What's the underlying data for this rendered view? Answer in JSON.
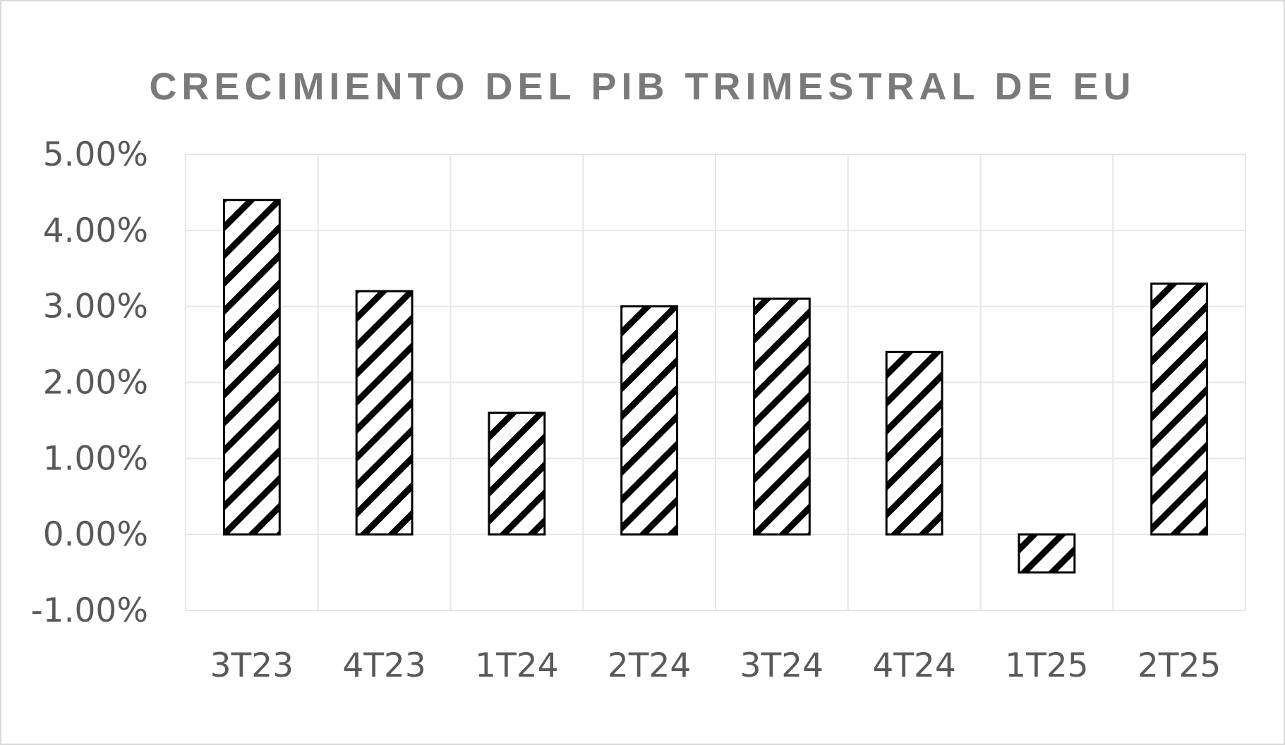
{
  "chart_data": {
    "type": "bar",
    "title": "CRECIMIENTO DEL PIB TRIMESTRAL DE EU",
    "xlabel": "",
    "ylabel": "",
    "categories": [
      "3T23",
      "4T23",
      "1T24",
      "2T24",
      "3T24",
      "4T24",
      "1T25",
      "2T25"
    ],
    "values": [
      4.4,
      3.2,
      1.6,
      3.0,
      3.1,
      2.4,
      -0.5,
      3.3
    ],
    "ylim": [
      -1,
      5
    ],
    "yticks": [
      5,
      4,
      3,
      2,
      1,
      0,
      -1
    ],
    "ytick_labels": [
      "5.00%",
      "4.00%",
      "3.00%",
      "2.00%",
      "1.00%",
      "0.00%",
      "-1.00%"
    ],
    "grid": true,
    "legend": "none",
    "bar_fill": "diagonal-hatch",
    "colors": {
      "bar_outline": "#000000",
      "hatch": "#000000",
      "grid": "#e6e6e6",
      "title": "#7a7a7a",
      "tick_text": "#595959",
      "frame": "#d9d9d9"
    }
  }
}
